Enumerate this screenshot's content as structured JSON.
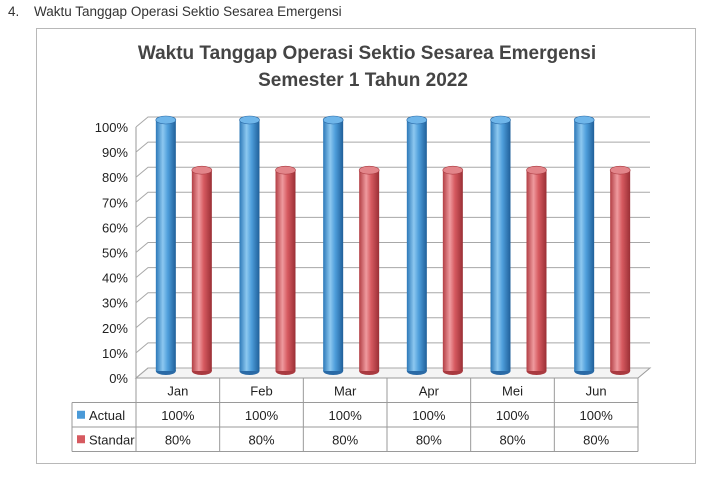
{
  "heading": {
    "number": "4.",
    "text": "Waktu Tanggap Operasi Sektio Sesarea Emergensi"
  },
  "chart_data": {
    "type": "bar",
    "title": "Waktu Tanggap Operasi Sektio Sesarea Emergensi",
    "subtitle": "Semester 1 Tahun 2022",
    "categories": [
      "Jan",
      "Feb",
      "Mar",
      "Apr",
      "Mei",
      "Jun"
    ],
    "series": [
      {
        "name": "Actual",
        "values": [
          100,
          100,
          100,
          100,
          100,
          100
        ],
        "labels": [
          "100%",
          "100%",
          "100%",
          "100%",
          "100%",
          "100%"
        ],
        "color": "#4a9ad8"
      },
      {
        "name": "Standar",
        "values": [
          80,
          80,
          80,
          80,
          80,
          80
        ],
        "labels": [
          "80%",
          "80%",
          "80%",
          "80%",
          "80%",
          "80%"
        ],
        "color": "#d65a60"
      }
    ],
    "ylim": [
      0,
      100
    ],
    "yticks": [
      "0%",
      "10%",
      "20%",
      "30%",
      "40%",
      "50%",
      "60%",
      "70%",
      "80%",
      "90%",
      "100%"
    ],
    "grid": true,
    "legend": "data-table-left",
    "style": "3d-cylinder"
  }
}
